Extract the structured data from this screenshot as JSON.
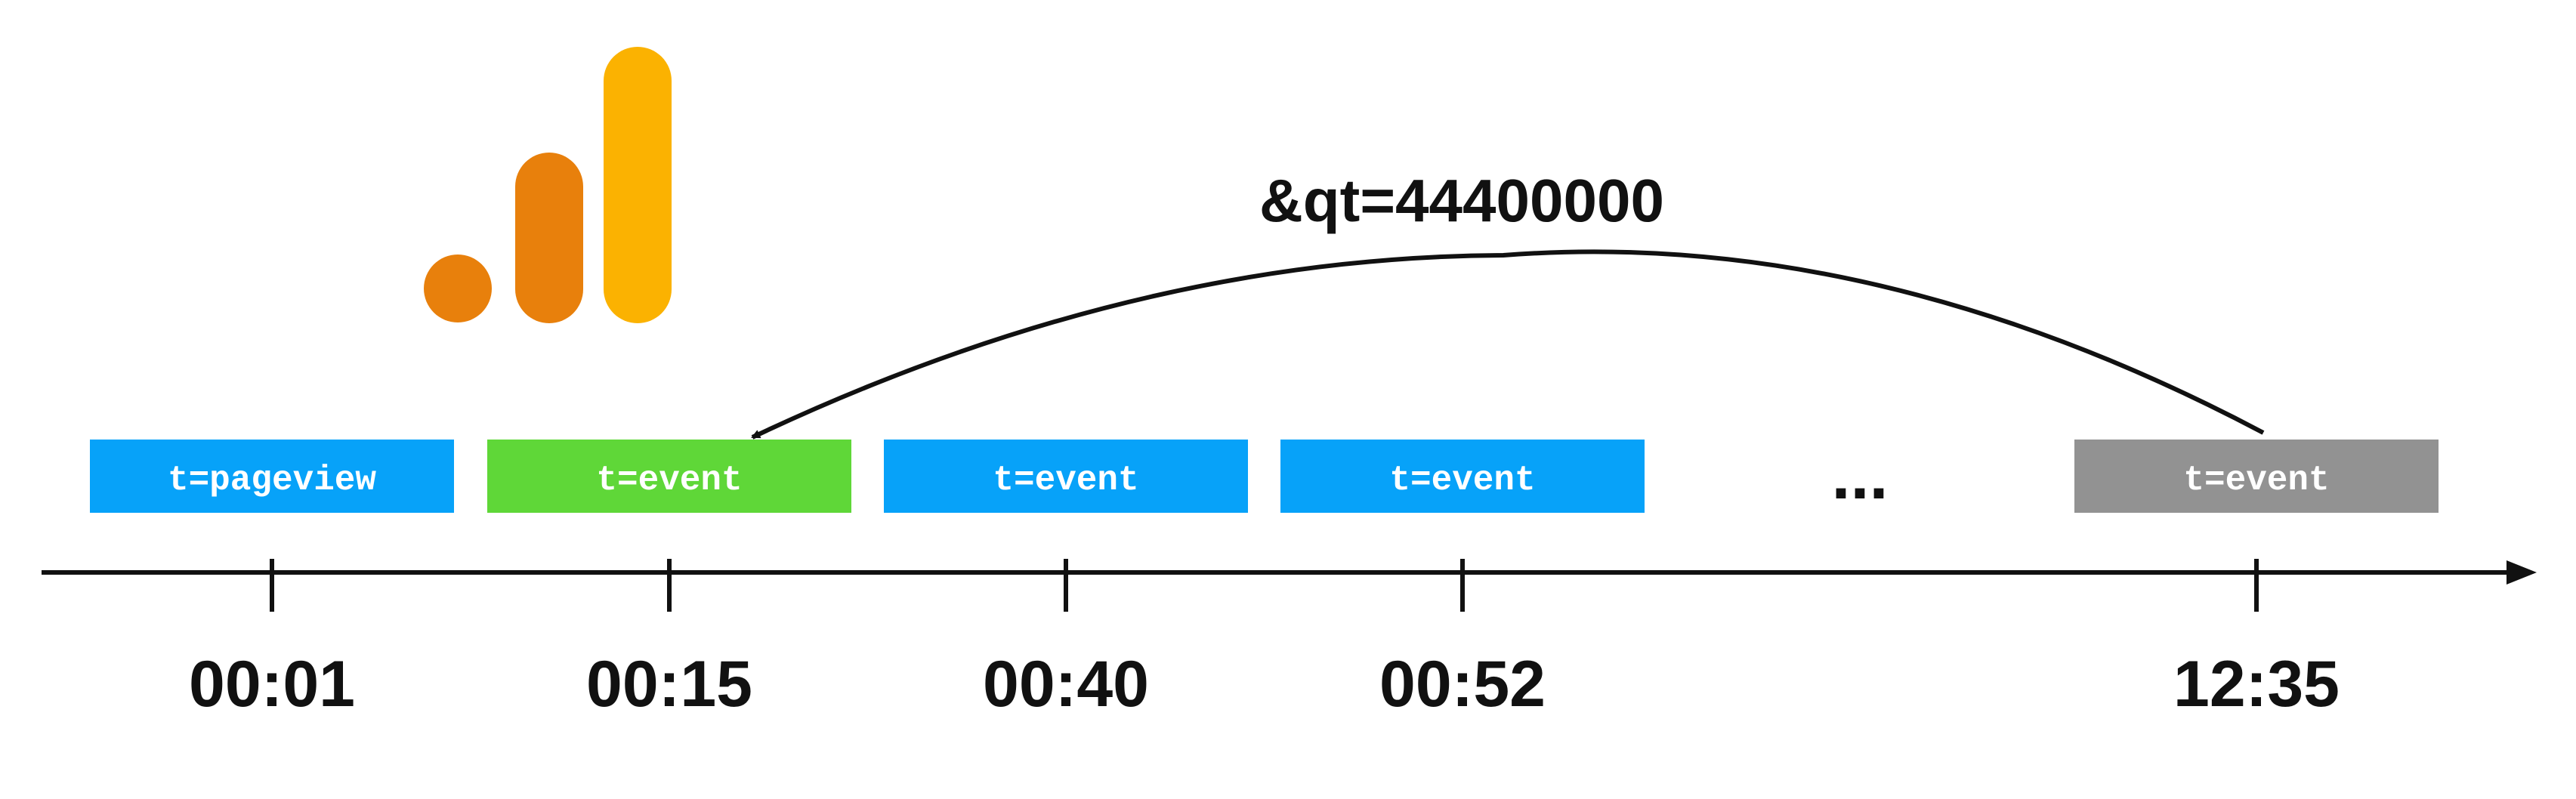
{
  "param_label": "&qt=44400000",
  "ellipsis": "...",
  "colors": {
    "axis": "#111111",
    "pageview_box": "#07a2f9",
    "event_box_blue": "#07a2f9",
    "event_box_green": "#5fd738",
    "event_box_gray": "#929292",
    "logo_light_orange": "#e8800c",
    "logo_dark_orange": "#e8800c",
    "logo_yellow": "#fbb201"
  },
  "logo": {
    "icon": "google-analytics-bars-icon"
  },
  "events": [
    {
      "label": "t=pageview",
      "time": "00:01",
      "color": "#07a2f9"
    },
    {
      "label": "t=event",
      "time": "00:15",
      "color": "#5fd738"
    },
    {
      "label": "t=event",
      "time": "00:40",
      "color": "#07a2f9"
    },
    {
      "label": "t=event",
      "time": "00:52",
      "color": "#07a2f9"
    },
    {
      "label": "t=event",
      "time": "12:35",
      "color": "#929292"
    }
  ]
}
